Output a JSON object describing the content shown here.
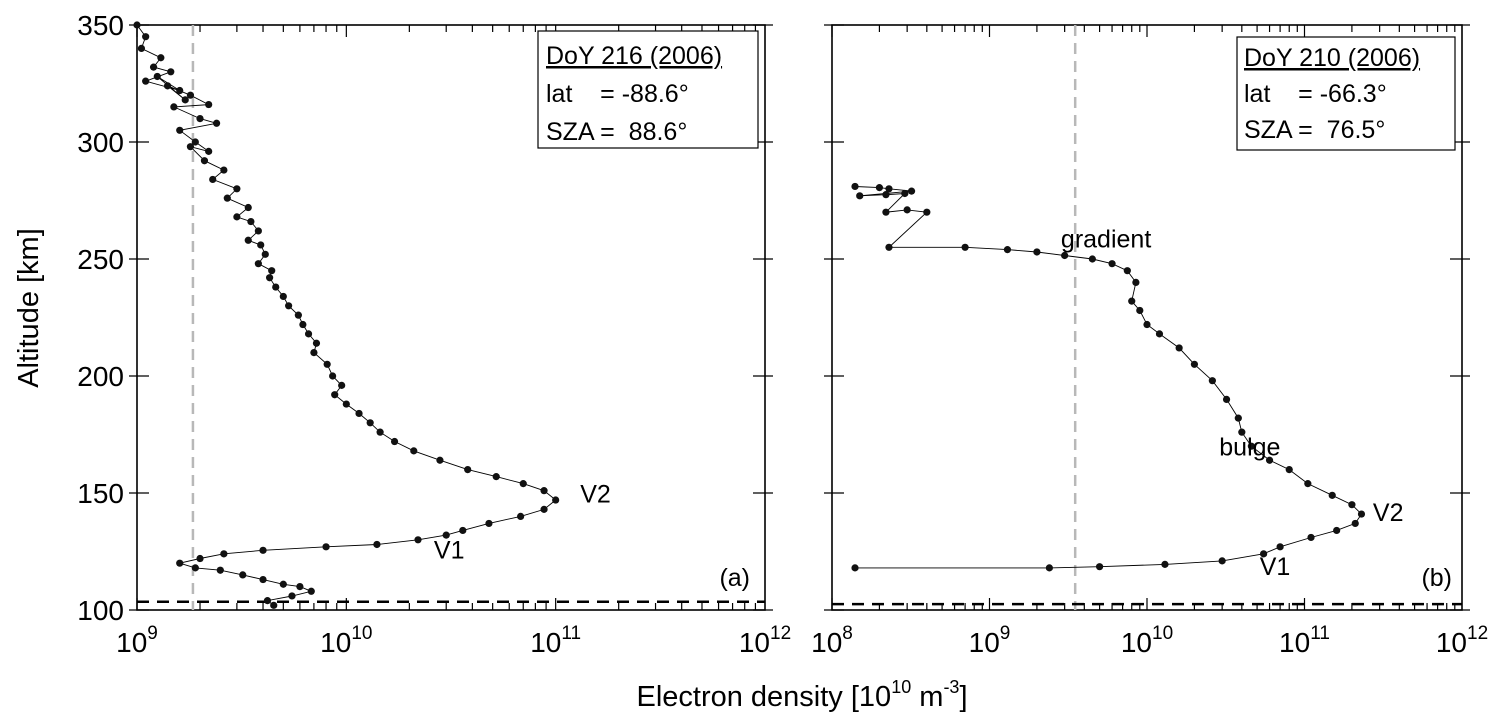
{
  "figure": {
    "ylabel": "Altitude [km]",
    "xlabel_main": "Electron density [10",
    "xlabel_exp1": "10",
    "xlabel_mid": " m",
    "xlabel_exp2": "-3",
    "xlabel_end": "]"
  },
  "chart_data": [
    {
      "type": "scatter",
      "panel_label": "(a)",
      "info": {
        "title": "DoY 216 (2006)",
        "lat": "lat    = -88.6°",
        "sza": "SZA =  88.6°"
      },
      "x_scale": "log",
      "xlim": [
        1000000000.0,
        1000000000000.0
      ],
      "ylim": [
        100,
        350
      ],
      "x_ticks": [
        {
          "value": 1000000000.0,
          "base": "10",
          "exp": "9"
        },
        {
          "value": 10000000000.0,
          "base": "10",
          "exp": "10"
        },
        {
          "value": 100000000000.0,
          "base": "10",
          "exp": "11"
        },
        {
          "value": 1000000000000.0,
          "base": "10",
          "exp": "12"
        }
      ],
      "y_ticks": [
        "100",
        "150",
        "200",
        "250",
        "300",
        "350"
      ],
      "y_tick_values": [
        100,
        150,
        200,
        250,
        300,
        350
      ],
      "noise_level_x": 1850000000.0,
      "surface_altitude": 103.5,
      "annotations": [
        {
          "text": "V2",
          "x": 155000000000.0,
          "y": 146
        },
        {
          "text": "V1",
          "x": 31000000000.0,
          "y": 122
        }
      ],
      "series": [
        {
          "x": [
            1000000000.0,
            1100000000.0,
            1050000000.0,
            1300000000.0,
            1200000000.0,
            1450000000.0,
            1100000000.0,
            1600000000.0,
            1250000000.0,
            1700000000.0,
            1400000000.0,
            1800000000.0,
            2200000000.0,
            1500000000.0,
            2000000000.0,
            2400000000.0,
            1600000000.0,
            1900000000.0,
            2200000000.0,
            1800000000.0,
            2100000000.0,
            2600000000.0,
            2300000000.0,
            3000000000.0,
            2700000000.0,
            3400000000.0,
            3000000000.0,
            3500000000.0,
            3800000000.0,
            3400000000.0,
            3900000000.0,
            4100000000.0,
            3800000000.0,
            4400000000.0,
            4300000000.0,
            4600000000.0,
            5000000000.0,
            5300000000.0,
            5900000000.0,
            6200000000.0,
            6600000000.0,
            7200000000.0,
            7000000000.0,
            8100000000.0,
            8600000000.0,
            9500000000.0,
            8800000000.0,
            10000000000.0,
            11500000000.0,
            13000000000.0,
            14500000000.0,
            17000000000.0,
            21000000000.0,
            28000000000.0,
            38000000000.0,
            52000000000.0,
            70000000000.0,
            88000000000.0,
            100000000000.0,
            88000000000.0,
            68000000000.0,
            48000000000.0,
            36000000000.0,
            30000000000.0,
            22000000000.0,
            14000000000.0,
            8000000000.0,
            4000000000.0,
            2600000000.0,
            2000000000.0,
            1600000000.0,
            1900000000.0,
            2500000000.0,
            3200000000.0,
            4000000000.0,
            5000000000.0,
            6000000000.0,
            6800000000.0,
            5500000000.0,
            4200000000.0,
            4500000000.0
          ],
          "y": [
            350,
            345,
            340,
            336,
            332,
            330,
            326,
            322,
            328,
            318,
            324,
            320,
            316,
            315,
            310,
            308,
            305,
            300,
            296,
            298,
            292,
            288,
            284,
            280,
            276,
            272,
            268,
            266,
            262,
            258,
            256,
            252,
            248,
            245,
            242,
            238,
            234,
            230,
            226,
            222,
            218,
            214,
            210,
            205,
            200,
            196,
            192,
            188,
            184,
            180,
            176,
            172,
            168,
            164,
            160,
            157,
            154,
            151,
            147,
            143,
            140,
            137,
            134,
            132,
            130,
            128,
            127,
            125.5,
            124,
            122,
            120,
            118,
            117,
            115,
            113,
            111,
            110,
            108,
            106,
            104,
            102
          ]
        }
      ]
    },
    {
      "type": "scatter",
      "panel_label": "(b)",
      "info": {
        "title": "DoY 210 (2006)",
        "lat": "lat    = -66.3°",
        "sza": "SZA =  76.5°"
      },
      "x_scale": "log",
      "xlim": [
        100000000.0,
        1000000000000.0
      ],
      "ylim": [
        100,
        350
      ],
      "x_ticks": [
        {
          "value": 100000000.0,
          "base": "10",
          "exp": "8"
        },
        {
          "value": 1000000000.0,
          "base": "10",
          "exp": "9"
        },
        {
          "value": 10000000000.0,
          "base": "10",
          "exp": "10"
        },
        {
          "value": 100000000000.0,
          "base": "10",
          "exp": "11"
        },
        {
          "value": 1000000000000.0,
          "base": "10",
          "exp": "12"
        }
      ],
      "y_tick_values": [
        100,
        150,
        200,
        250,
        300,
        350
      ],
      "noise_level_x": 3500000000.0,
      "surface_altitude": 102.5,
      "annotations": [
        {
          "text": "gradient",
          "x": 5500000000.0,
          "y": 255
        },
        {
          "text": "bulge",
          "x": 45000000000.0,
          "y": 166
        },
        {
          "text": "V2",
          "x": 340000000000.0,
          "y": 138
        },
        {
          "text": "V1",
          "x": 65000000000.0,
          "y": 115
        }
      ],
      "series": [
        {
          "x": [
            140000000.0,
            200000000.0,
            230000000.0,
            320000000.0,
            150000000.0,
            220000000.0,
            290000000.0,
            220000000.0,
            300000000.0,
            400000000.0,
            230000000.0,
            700000000.0,
            1300000000.0,
            2000000000.0,
            3000000000.0,
            4500000000.0,
            6000000000.0,
            7500000000.0,
            8500000000.0,
            8000000000.0,
            9000000000.0,
            10000000000.0,
            12000000000.0,
            16000000000.0,
            20000000000.0,
            26000000000.0,
            32000000000.0,
            38000000000.0,
            40000000000.0,
            46000000000.0,
            60000000000.0,
            80000000000.0,
            105000000000.0,
            150000000000.0,
            200000000000.0,
            230000000000.0,
            210000000000.0,
            160000000000.0,
            110000000000.0,
            70000000000.0,
            55000000000.0,
            30000000000.0,
            13000000000.0,
            5000000000.0,
            2400000000.0,
            140000000.0
          ],
          "y": [
            281,
            280.5,
            280,
            279,
            277,
            277.5,
            278,
            270,
            271,
            270,
            255,
            255,
            254,
            253,
            251.5,
            250,
            248,
            245,
            240,
            232,
            228,
            222,
            218,
            212,
            205,
            198,
            190,
            182,
            176,
            170,
            164,
            160,
            154,
            149,
            145,
            141,
            137,
            134,
            131,
            127,
            124,
            121,
            119.5,
            118.5,
            118,
            118
          ]
        }
      ]
    }
  ]
}
